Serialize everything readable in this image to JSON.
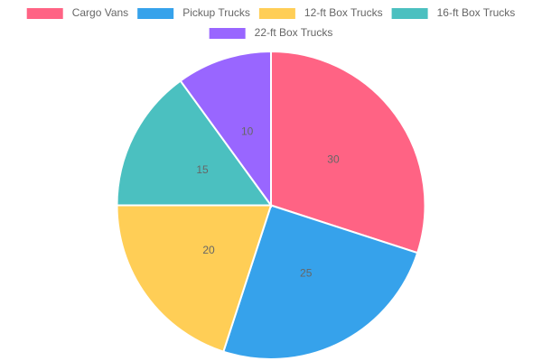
{
  "chart_data": {
    "type": "pie",
    "categories": [
      "Cargo Vans",
      "Pickup Trucks",
      "12-ft Box Trucks",
      "16-ft Box Trucks",
      "22-ft Box Trucks"
    ],
    "values": [
      30,
      25,
      20,
      15,
      10
    ],
    "colors": [
      "#ff6384",
      "#36a2eb",
      "#ffce56",
      "#4bc0c0",
      "#9966ff"
    ],
    "legend": "top"
  }
}
